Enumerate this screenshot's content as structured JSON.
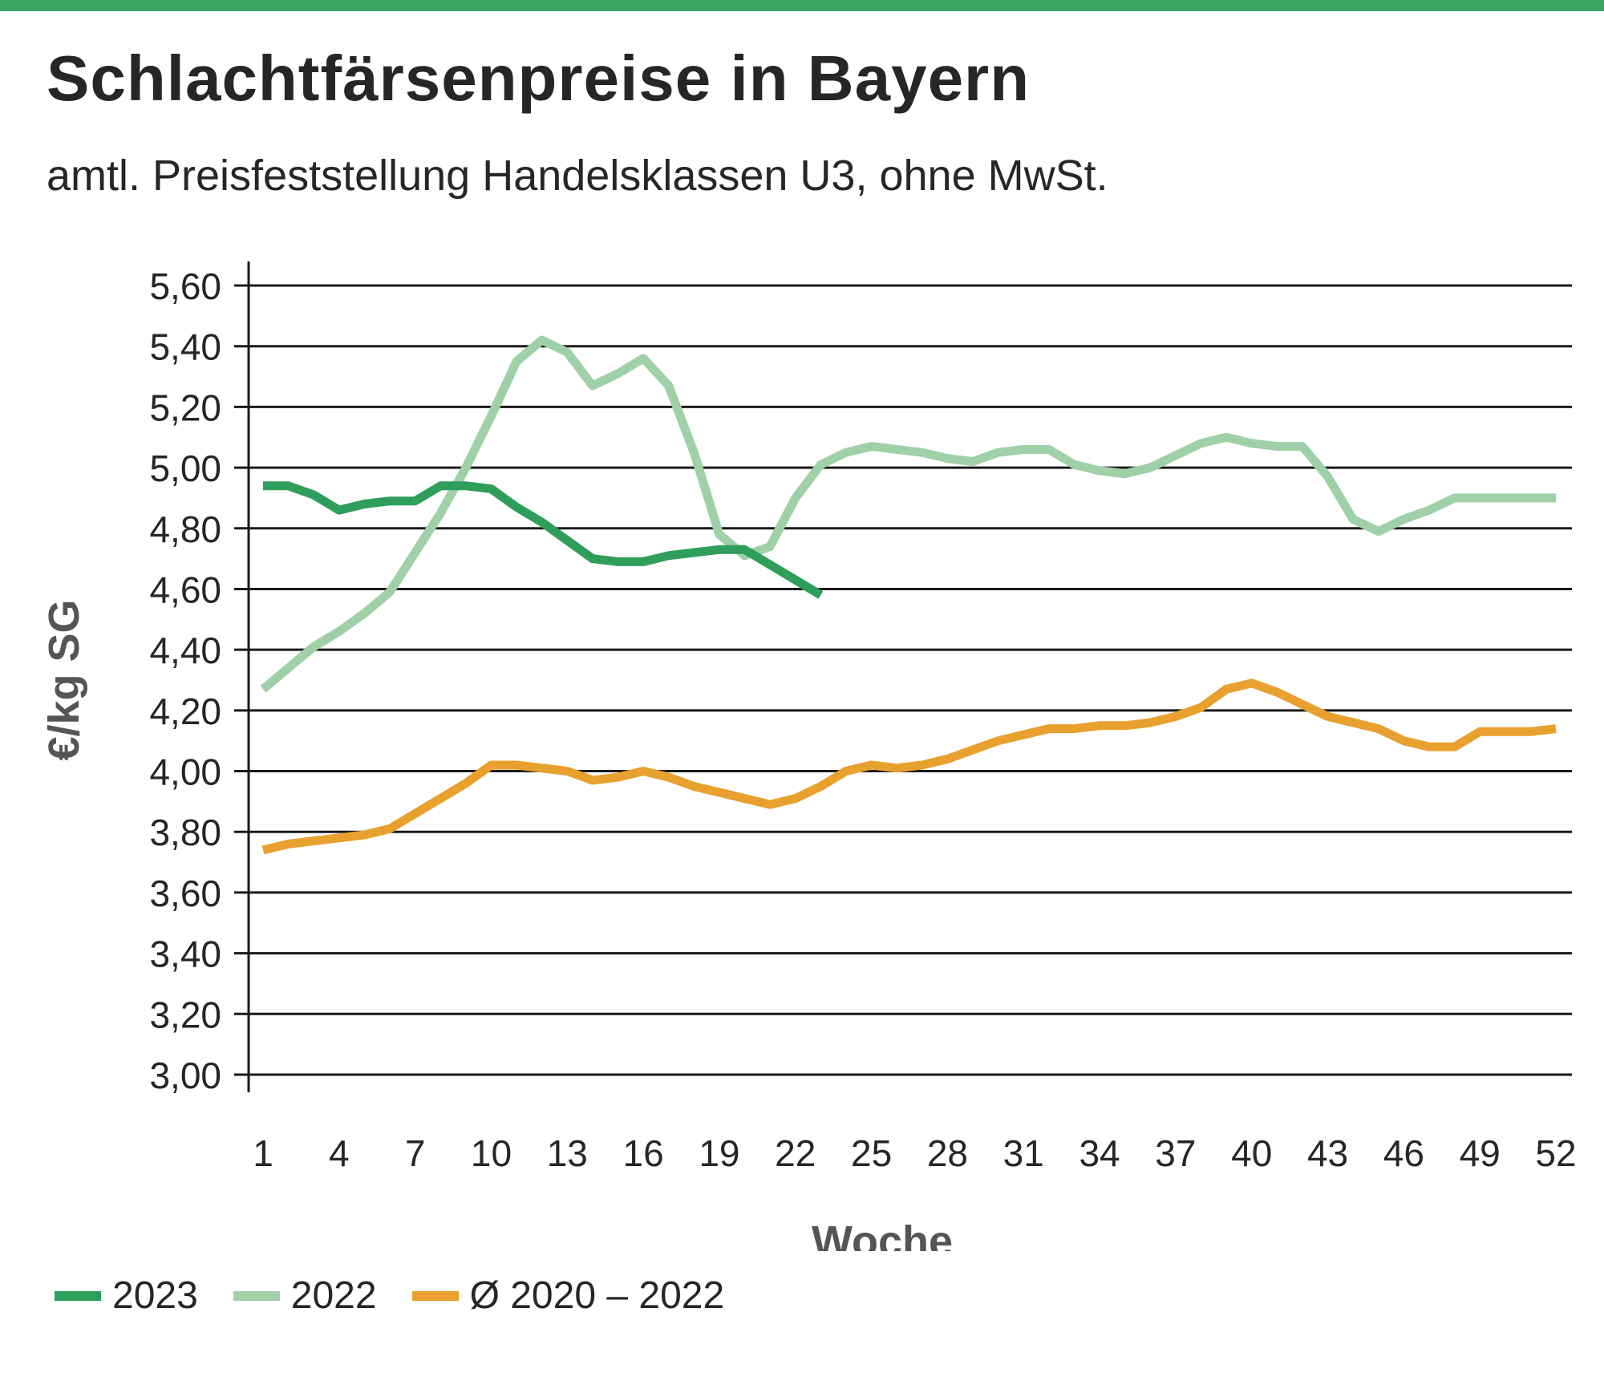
{
  "title": "Schlachtfärsenpreise in Bayern",
  "subtitle": "amtl. Preisfeststellung Handelsklassen U3, ohne MwSt.",
  "colors": {
    "top_bar": "#3aa560",
    "s2023": "#2f9e5b",
    "s2022": "#9fd0a8",
    "avg": "#e8a12e",
    "grid": "#1a1a1a",
    "text": "#262626"
  },
  "legend": [
    {
      "label": "2023",
      "color": "#2f9e5b"
    },
    {
      "label": "2022",
      "color": "#9fd0a8"
    },
    {
      "label": "Ø 2020 – 2022",
      "color": "#e8a12e"
    }
  ],
  "chart_data": {
    "type": "line",
    "xlabel": "Woche",
    "ylabel": "€/kg SG",
    "xlim": [
      1,
      52
    ],
    "ylim": [
      3.0,
      5.6
    ],
    "grid": true,
    "legend_position": "bottom",
    "x_ticks": [
      1,
      4,
      7,
      10,
      13,
      16,
      19,
      22,
      25,
      28,
      31,
      34,
      37,
      40,
      43,
      46,
      49,
      52
    ],
    "y_ticks": [
      3.0,
      3.2,
      3.4,
      3.6,
      3.8,
      4.0,
      4.2,
      4.4,
      4.6,
      4.8,
      5.0,
      5.2,
      5.4,
      5.6
    ],
    "y_tick_labels": [
      "3,00",
      "3,20",
      "3,40",
      "3,60",
      "3,80",
      "4,00",
      "4,20",
      "4,40",
      "4,60",
      "4,80",
      "5,00",
      "5,20",
      "5,40",
      "5,60"
    ],
    "series": [
      {
        "name": "2023",
        "color": "#2f9e5b",
        "x": [
          1,
          2,
          3,
          4,
          5,
          6,
          7,
          8,
          9,
          10,
          11,
          12,
          13,
          14,
          15,
          16,
          17,
          18,
          19,
          20,
          21,
          22,
          23
        ],
        "values": [
          4.94,
          4.94,
          4.91,
          4.86,
          4.88,
          4.89,
          4.89,
          4.94,
          4.94,
          4.93,
          4.87,
          4.82,
          4.76,
          4.7,
          4.69,
          4.69,
          4.71,
          4.72,
          4.73,
          4.73,
          4.68,
          4.63,
          4.58
        ]
      },
      {
        "name": "2022",
        "color": "#9fd0a8",
        "x": [
          1,
          2,
          3,
          4,
          5,
          6,
          7,
          8,
          9,
          10,
          11,
          12,
          13,
          14,
          15,
          16,
          17,
          18,
          19,
          20,
          21,
          22,
          23,
          24,
          25,
          26,
          27,
          28,
          29,
          30,
          31,
          32,
          33,
          34,
          35,
          36,
          37,
          38,
          39,
          40,
          41,
          42,
          43,
          44,
          45,
          46,
          47,
          48,
          49,
          50,
          51,
          52
        ],
        "values": [
          4.27,
          4.34,
          4.41,
          4.46,
          4.52,
          4.59,
          4.72,
          4.85,
          5.0,
          5.17,
          5.35,
          5.42,
          5.38,
          5.27,
          5.31,
          5.36,
          5.27,
          5.05,
          4.78,
          4.71,
          4.74,
          4.9,
          5.01,
          5.05,
          5.07,
          5.06,
          5.05,
          5.03,
          5.02,
          5.05,
          5.06,
          5.06,
          5.01,
          4.99,
          4.98,
          5.0,
          5.04,
          5.08,
          5.1,
          5.08,
          5.07,
          5.07,
          4.97,
          4.83,
          4.79,
          4.83,
          4.86,
          4.9,
          4.9,
          4.9,
          4.9,
          4.9
        ]
      },
      {
        "name": "Ø 2020 – 2022",
        "color": "#e8a12e",
        "x": [
          1,
          2,
          3,
          4,
          5,
          6,
          7,
          8,
          9,
          10,
          11,
          12,
          13,
          14,
          15,
          16,
          17,
          18,
          19,
          20,
          21,
          22,
          23,
          24,
          25,
          26,
          27,
          28,
          29,
          30,
          31,
          32,
          33,
          34,
          35,
          36,
          37,
          38,
          39,
          40,
          41,
          42,
          43,
          44,
          45,
          46,
          47,
          48,
          49,
          50,
          51,
          52
        ],
        "values": [
          3.74,
          3.76,
          3.77,
          3.78,
          3.79,
          3.81,
          3.86,
          3.91,
          3.96,
          4.02,
          4.02,
          4.01,
          4.0,
          3.97,
          3.98,
          4.0,
          3.98,
          3.95,
          3.93,
          3.91,
          3.89,
          3.91,
          3.95,
          4.0,
          4.02,
          4.01,
          4.02,
          4.04,
          4.07,
          4.1,
          4.12,
          4.14,
          4.14,
          4.15,
          4.15,
          4.16,
          4.18,
          4.21,
          4.27,
          4.29,
          4.26,
          4.22,
          4.18,
          4.16,
          4.14,
          4.1,
          4.08,
          4.08,
          4.13,
          4.13,
          4.13,
          4.14
        ]
      }
    ]
  }
}
